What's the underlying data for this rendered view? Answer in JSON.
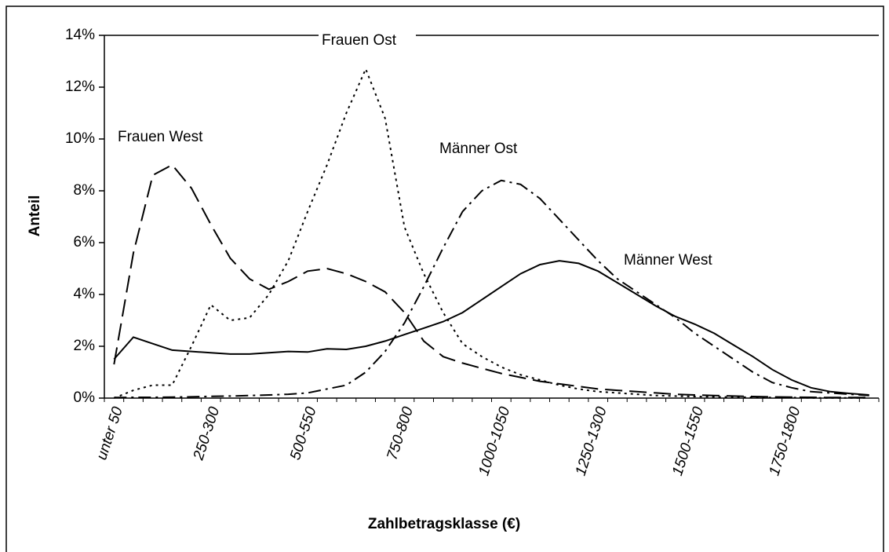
{
  "chart_data": {
    "type": "line",
    "x_label": "Zahlbetragsklasse (€)",
    "y_label": "Anteil",
    "categories": [
      "unter 50",
      null,
      null,
      null,
      null,
      "250-300",
      null,
      null,
      null,
      null,
      "500-550",
      null,
      null,
      null,
      null,
      "750-800",
      null,
      null,
      null,
      null,
      "1000-1050",
      null,
      null,
      null,
      null,
      "1250-1300",
      null,
      null,
      null,
      null,
      "1500-1550",
      null,
      null,
      null,
      null,
      "1750-1800",
      null,
      null,
      null,
      null
    ],
    "ylim": [
      0,
      14
    ],
    "yticks": [
      {
        "value": 0,
        "label": "0%"
      },
      {
        "value": 2,
        "label": "2%"
      },
      {
        "value": 4,
        "label": "4%"
      },
      {
        "value": 6,
        "label": "6%"
      },
      {
        "value": 8,
        "label": "8%"
      },
      {
        "value": 10,
        "label": "10%"
      },
      {
        "value": 12,
        "label": "12%"
      },
      {
        "value": 14,
        "label": "14%"
      }
    ],
    "series": [
      {
        "name": "Frauen West",
        "color": "#000000",
        "line_style": "dashed",
        "values": [
          1.3,
          5.6,
          8.6,
          9.0,
          8.1,
          6.7,
          5.4,
          4.6,
          4.2,
          4.5,
          4.9,
          5.0,
          4.8,
          4.5,
          4.1,
          3.3,
          2.2,
          1.6,
          1.35,
          1.15,
          0.95,
          0.8,
          0.65,
          0.55,
          0.45,
          0.35,
          0.3,
          0.25,
          0.2,
          0.15,
          0.12,
          0.1,
          0.08,
          0.06,
          0.05,
          0.04,
          0.03,
          0.02,
          0.02,
          0.02
        ]
      },
      {
        "name": "Frauen Ost",
        "color": "#000000",
        "line_style": "dotted",
        "values": [
          0.0,
          0.3,
          0.5,
          0.5,
          2.0,
          3.6,
          3.0,
          3.1,
          4.0,
          5.3,
          7.2,
          9.0,
          11.0,
          12.7,
          10.8,
          6.6,
          4.8,
          3.3,
          2.1,
          1.6,
          1.2,
          0.9,
          0.7,
          0.5,
          0.35,
          0.25,
          0.2,
          0.15,
          0.1,
          0.08,
          0.06,
          0.05,
          0.04,
          0.03,
          0.02,
          0.02,
          0.01,
          0.01,
          0.01,
          0.01
        ]
      },
      {
        "name": "Männer Ost",
        "color": "#000000",
        "line_style": "dashdot",
        "values": [
          0.02,
          0.03,
          0.03,
          0.04,
          0.05,
          0.07,
          0.08,
          0.1,
          0.12,
          0.15,
          0.2,
          0.35,
          0.5,
          1.0,
          1.8,
          2.9,
          4.3,
          5.8,
          7.2,
          8.0,
          8.4,
          8.25,
          7.7,
          6.9,
          6.1,
          5.3,
          4.6,
          4.1,
          3.6,
          3.1,
          2.5,
          2.0,
          1.5,
          1.0,
          0.6,
          0.4,
          0.25,
          0.2,
          0.15,
          0.1
        ]
      },
      {
        "name": "Männer West",
        "color": "#000000",
        "line_style": "solid",
        "values": [
          1.5,
          2.35,
          2.1,
          1.85,
          1.8,
          1.75,
          1.7,
          1.7,
          1.75,
          1.8,
          1.78,
          1.9,
          1.88,
          2.0,
          2.2,
          2.45,
          2.7,
          2.95,
          3.3,
          3.8,
          4.3,
          4.8,
          5.15,
          5.3,
          5.2,
          4.9,
          4.45,
          4.0,
          3.55,
          3.15,
          2.85,
          2.5,
          2.05,
          1.6,
          1.1,
          0.7,
          0.4,
          0.25,
          0.18,
          0.12
        ]
      }
    ]
  }
}
